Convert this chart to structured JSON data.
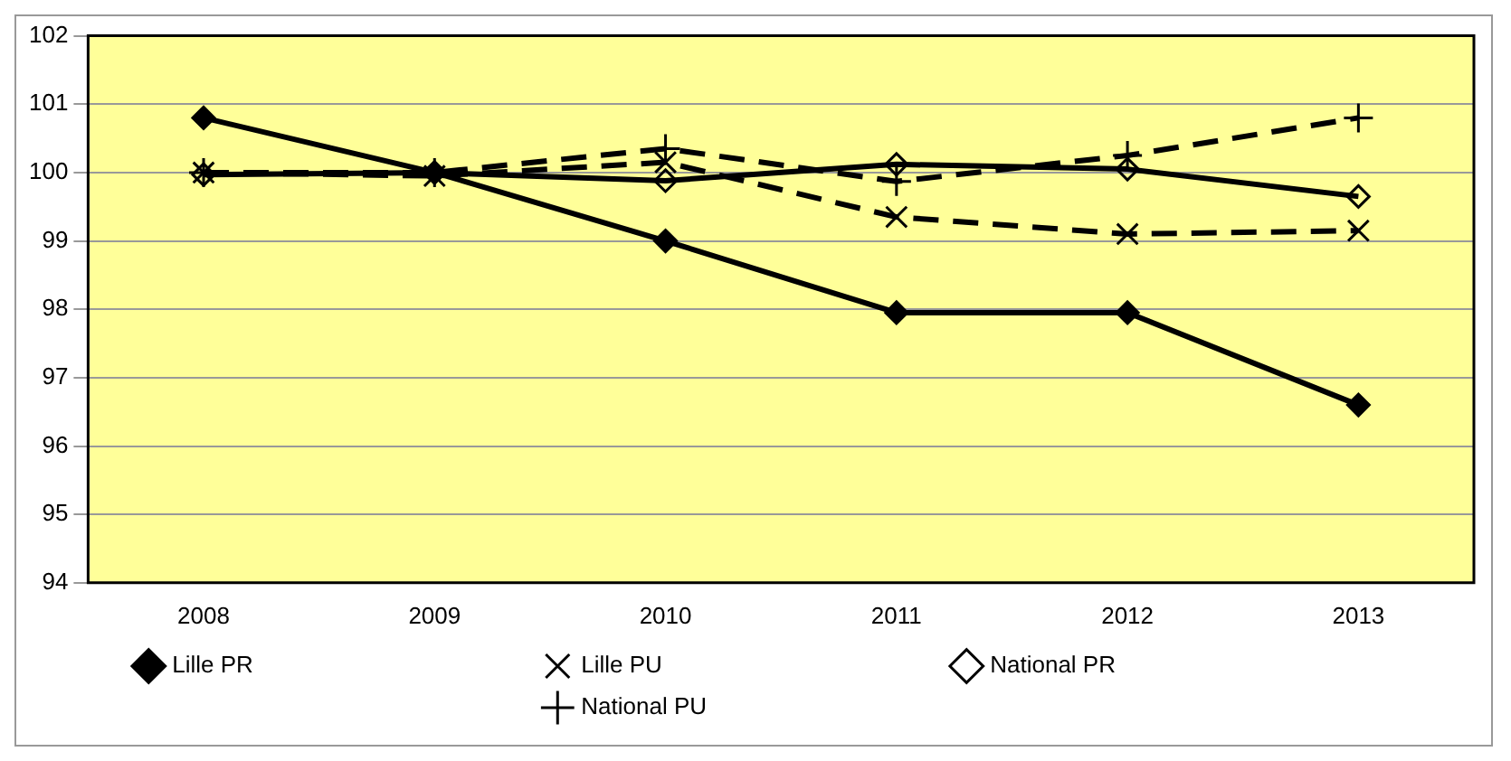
{
  "chart_data": {
    "type": "line",
    "categories": [
      "2008",
      "2009",
      "2010",
      "2011",
      "2012",
      "2013"
    ],
    "series": [
      {
        "name": "Lille PR",
        "color": "#000000",
        "marker": "diamond",
        "line_style": "solid",
        "values": [
          100.8,
          100,
          99,
          97.95,
          97.95,
          96.6
        ]
      },
      {
        "name": "Lille PU",
        "color": "#000000",
        "marker": "x",
        "line_style": "dashed",
        "values": [
          100,
          99.95,
          100.15,
          99.35,
          99.1,
          99.15
        ]
      },
      {
        "name": "National PR",
        "color": "#000000",
        "marker": "diamond-open",
        "line_style": "solid",
        "values": [
          99.97,
          100,
          99.88,
          100.12,
          100.05,
          99.65
        ]
      },
      {
        "name": "National PU",
        "color": "#000000",
        "marker": "cross",
        "line_style": "dashed",
        "values": [
          100,
          100,
          100.35,
          99.87,
          100.25,
          100.8
        ]
      }
    ],
    "ylim": [
      94,
      102
    ],
    "yticks": [
      94,
      95,
      96,
      97,
      98,
      99,
      100,
      101,
      102
    ],
    "grid": "y",
    "legend": "bottom"
  }
}
